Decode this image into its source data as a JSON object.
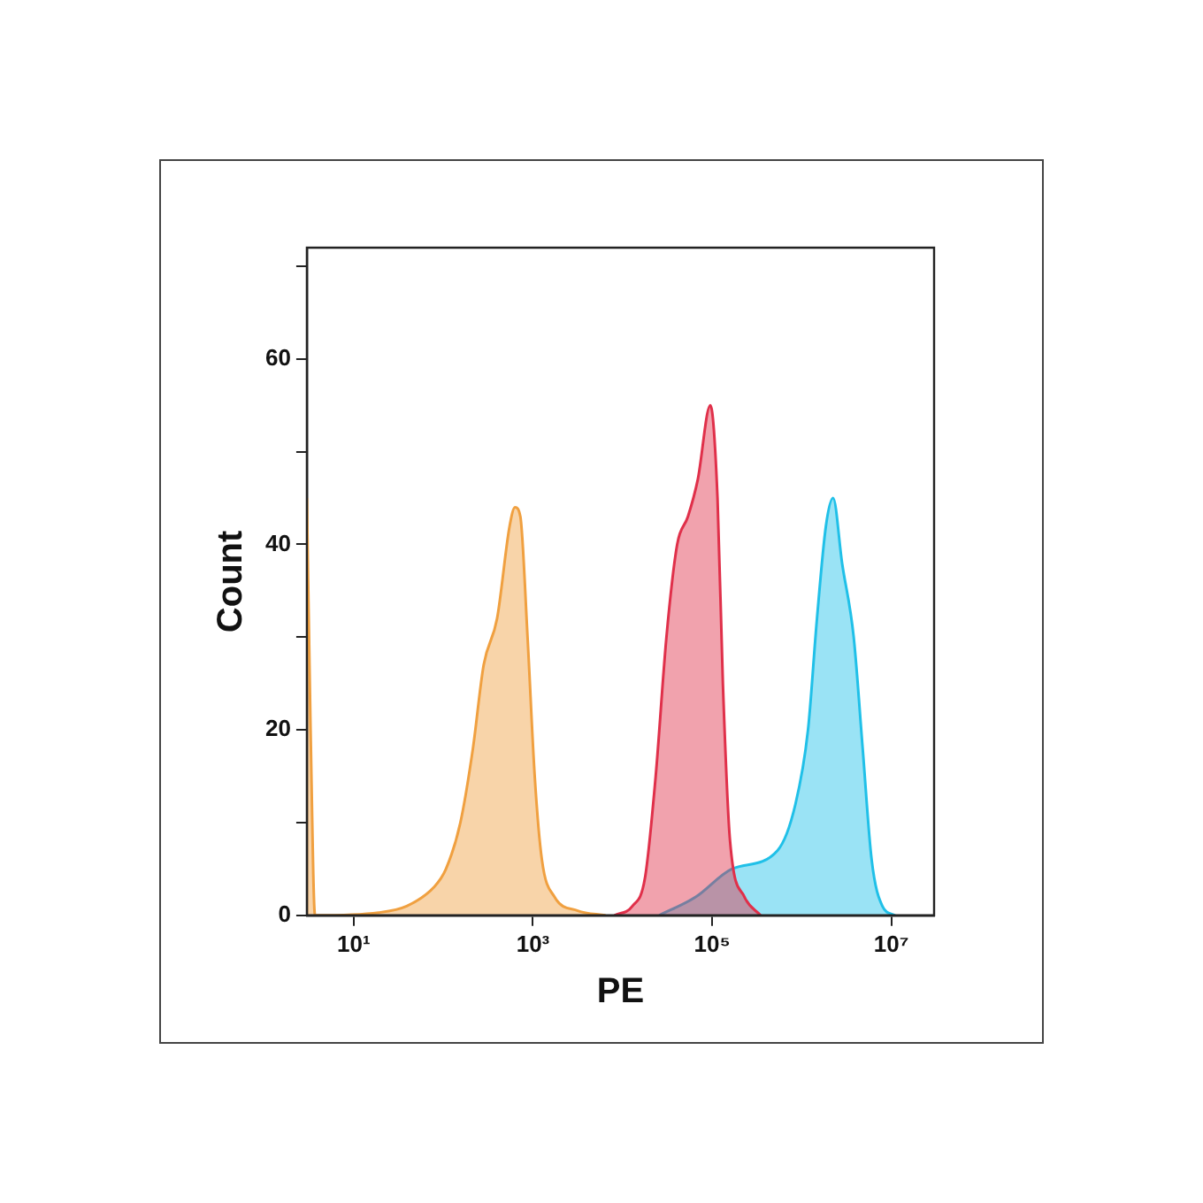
{
  "chart_data": {
    "type": "area",
    "xlabel": "PE",
    "ylabel": "Count",
    "log": "x",
    "grid": false,
    "legend": false,
    "marker": "none",
    "xlim": [
      3,
      30000000
    ],
    "ylim": [
      0,
      72
    ],
    "xticks": [
      {
        "value": 10,
        "label": "10¹"
      },
      {
        "value": 1000,
        "label": "10³"
      },
      {
        "value": 100000,
        "label": "10⁵"
      },
      {
        "value": 10000000,
        "label": "10⁷"
      }
    ],
    "yticks": [
      0,
      {
        "value": 10,
        "label": null
      },
      20,
      {
        "value": 30,
        "label": null
      },
      40,
      {
        "value": 50,
        "label": null
      },
      60,
      {
        "value": 70,
        "label": null
      }
    ],
    "series": [
      {
        "color": "#f0a040",
        "x": [
          3,
          3.3,
          3.7,
          19,
          39,
          78,
          107,
          155,
          214,
          282,
          398,
          550,
          631,
          724,
          871,
          1047,
          1259,
          1738,
          3162,
          6457
        ],
        "values": [
          45,
          20,
          0,
          0.3,
          1,
          3,
          5,
          10,
          18,
          27,
          32,
          42,
          44,
          43,
          30,
          15,
          6,
          2,
          0.5,
          0
        ]
      },
      {
        "color": "#e0304a",
        "x": [
          8128,
          12882,
          17783,
          23442,
          30903,
          40738,
          53703,
          69183,
          95499,
          114815,
          131826,
          158489,
          229087,
          346737
        ],
        "values": [
          0,
          1,
          4,
          15,
          30,
          40,
          43,
          47,
          55,
          45,
          25,
          8,
          2,
          0
        ]
      },
      {
        "color": "#20c0e8",
        "x": [
          25704,
          66069,
          165959,
          537032,
          851138,
          1174898,
          1479108,
          1862087,
          2238721,
          2818383,
          3801894,
          4786301,
          6025596,
          7943282,
          10964782
        ],
        "values": [
          0,
          2,
          5,
          7,
          12,
          20,
          32,
          42,
          45,
          38,
          30,
          18,
          6,
          1,
          0
        ]
      }
    ]
  }
}
